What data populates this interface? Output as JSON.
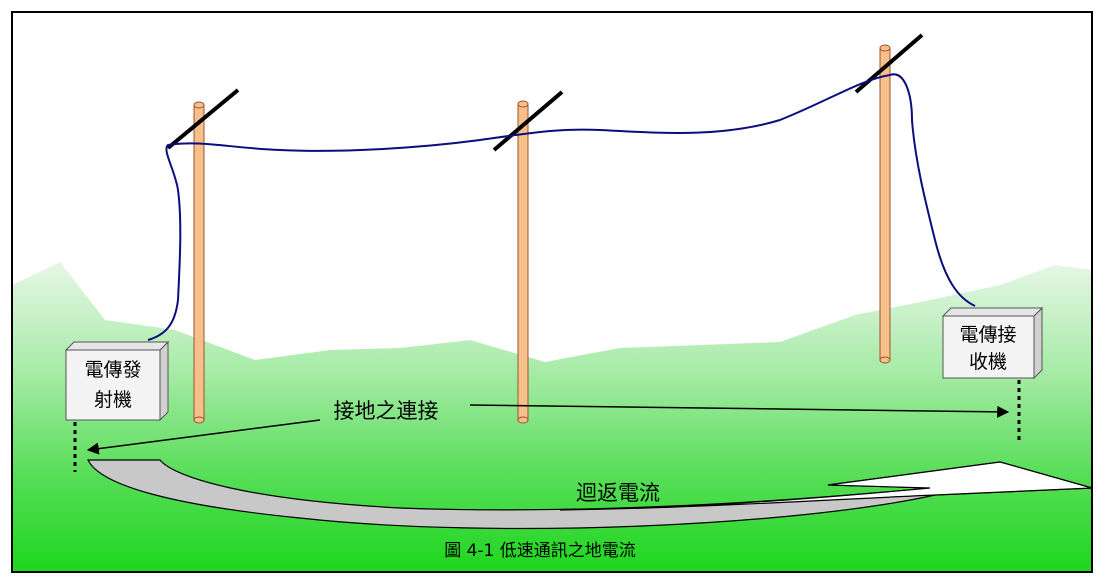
{
  "diagram": {
    "caption": "圖 4-1  低速通訊之地電流",
    "transmitter": {
      "line1": "電傳發",
      "line2": "射機"
    },
    "receiver": {
      "line1": "電傳接",
      "line2": "收機"
    },
    "ground_connection_label": "接地之連接",
    "return_current_label": "迴返電流"
  },
  "colors": {
    "sky": "#ffffff",
    "ground_top": "#d9f5d9",
    "ground_bottom": "#22dd22",
    "pole_fill": "#f5c08a",
    "pole_stroke": "#a0522d",
    "wire": "#0d0d80",
    "box_fill": "#f4f4f4",
    "return_arrow_fill": "#c8c8c8"
  }
}
